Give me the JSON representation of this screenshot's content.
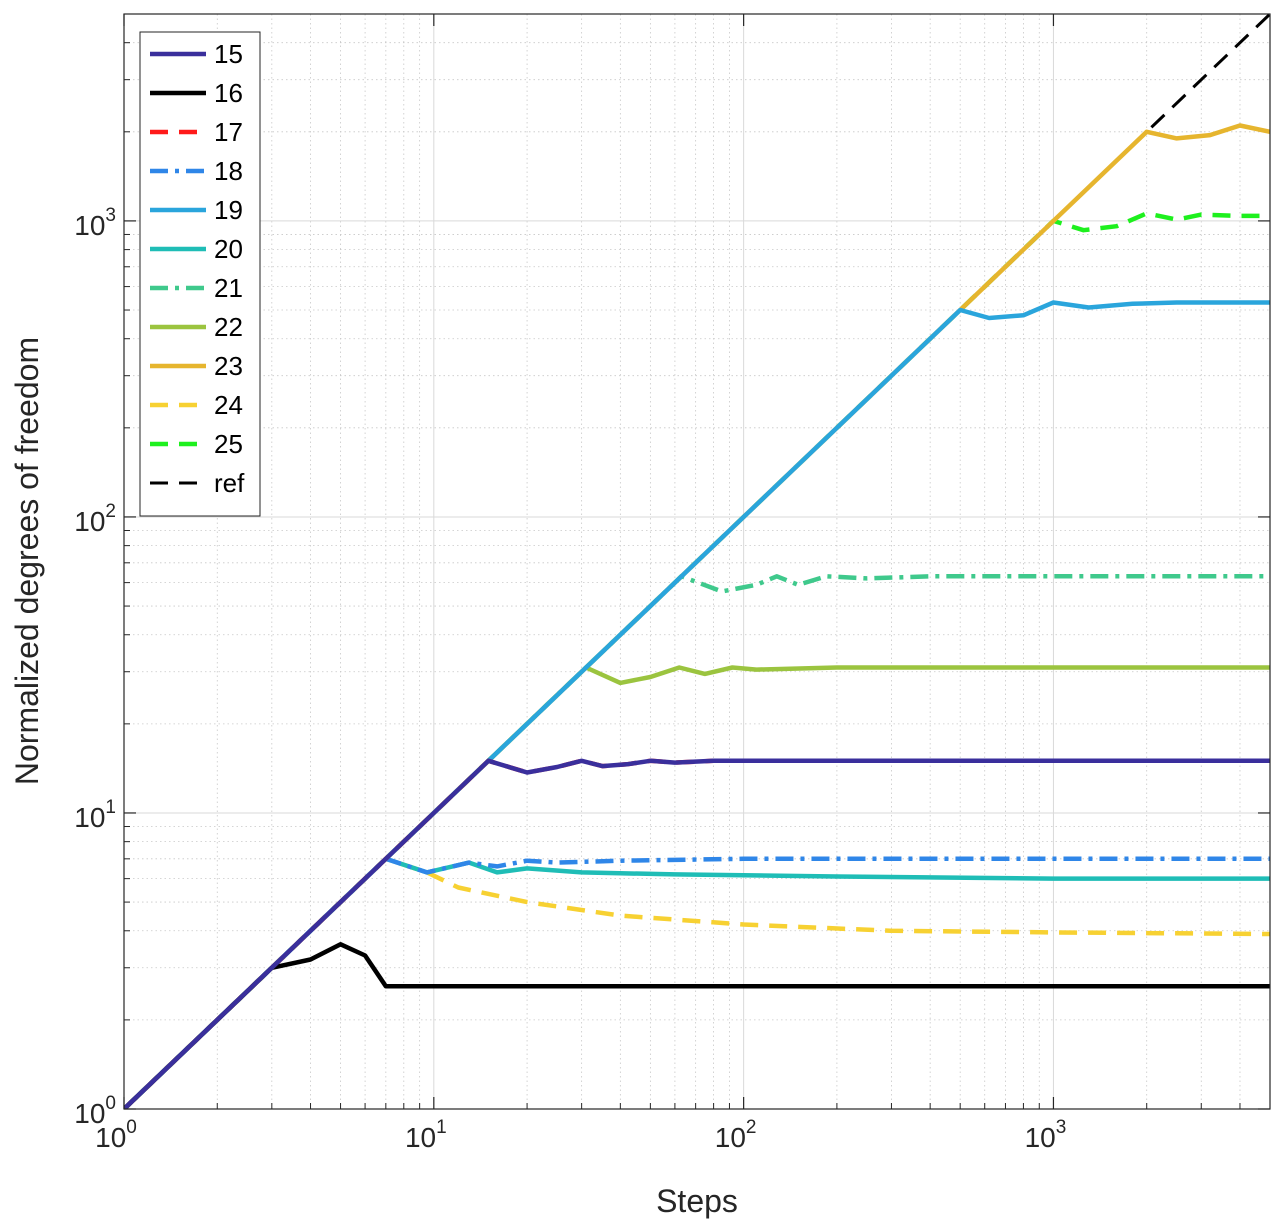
{
  "chart_data": {
    "type": "line",
    "title": "",
    "xlabel": "Steps",
    "ylabel": "Normalized degrees of freedom",
    "xscale": "log",
    "yscale": "log",
    "xlim": [
      1,
      5000
    ],
    "ylim": [
      1,
      5000
    ],
    "grid": "major and minor, dotted",
    "legend_position": "top-left",
    "x_ticks": [
      {
        "base": "10",
        "exp": "0",
        "value": 1
      },
      {
        "base": "10",
        "exp": "1",
        "value": 10
      },
      {
        "base": "10",
        "exp": "2",
        "value": 100
      },
      {
        "base": "10",
        "exp": "3",
        "value": 1000
      }
    ],
    "y_ticks": [
      {
        "base": "10",
        "exp": "0",
        "value": 1
      },
      {
        "base": "10",
        "exp": "1",
        "value": 10
      },
      {
        "base": "10",
        "exp": "2",
        "value": 100
      },
      {
        "base": "10",
        "exp": "3",
        "value": 1000
      }
    ],
    "series": [
      {
        "name": "15",
        "color": "#3a2f9c",
        "dash": "solid",
        "points": [
          [
            1,
            1
          ],
          [
            15,
            15
          ],
          [
            20,
            13.7
          ],
          [
            25,
            14.3
          ],
          [
            30,
            15
          ],
          [
            35,
            14.4
          ],
          [
            42,
            14.6
          ],
          [
            50,
            15
          ],
          [
            60,
            14.8
          ],
          [
            80,
            15
          ],
          [
            150,
            15
          ],
          [
            500,
            15
          ],
          [
            5000,
            15
          ]
        ]
      },
      {
        "name": "16",
        "color": "#000000",
        "dash": "solid",
        "points": [
          [
            1,
            1
          ],
          [
            3,
            3
          ],
          [
            4,
            3.2
          ],
          [
            5,
            3.6
          ],
          [
            6,
            3.3
          ],
          [
            7,
            2.6
          ],
          [
            5000,
            2.6
          ]
        ]
      },
      {
        "name": "17",
        "color": "#ff1a1a",
        "dash": "dash",
        "points": [
          [
            1,
            1
          ],
          [
            15,
            15
          ],
          [
            20,
            13.7
          ],
          [
            25,
            14.3
          ],
          [
            30,
            15
          ],
          [
            35,
            14.4
          ],
          [
            42,
            14.6
          ],
          [
            50,
            15
          ],
          [
            60,
            14.8
          ],
          [
            80,
            15
          ],
          [
            150,
            15
          ],
          [
            500,
            15
          ],
          [
            5000,
            15
          ]
        ]
      },
      {
        "name": "18",
        "color": "#2f86e8",
        "dash": "dashdot",
        "points": [
          [
            1,
            1
          ],
          [
            7,
            7
          ],
          [
            9.5,
            6.3
          ],
          [
            13,
            6.8
          ],
          [
            16,
            6.6
          ],
          [
            20,
            6.9
          ],
          [
            25,
            6.8
          ],
          [
            40,
            6.9
          ],
          [
            100,
            7
          ],
          [
            5000,
            7
          ]
        ]
      },
      {
        "name": "19",
        "color": "#2aa5dc",
        "dash": "solid",
        "points": [
          [
            1,
            1
          ],
          [
            500,
            500
          ],
          [
            620,
            470
          ],
          [
            800,
            480
          ],
          [
            1000,
            530
          ],
          [
            1300,
            510
          ],
          [
            1800,
            525
          ],
          [
            2500,
            530
          ],
          [
            5000,
            530
          ]
        ]
      },
      {
        "name": "20",
        "color": "#1fbdb6",
        "dash": "solid",
        "points": [
          [
            1,
            1
          ],
          [
            7,
            7
          ],
          [
            9.5,
            6.3
          ],
          [
            13,
            6.8
          ],
          [
            16,
            6.3
          ],
          [
            20,
            6.5
          ],
          [
            30,
            6.3
          ],
          [
            60,
            6.2
          ],
          [
            200,
            6.1
          ],
          [
            1000,
            6.0
          ],
          [
            5000,
            6.0
          ]
        ]
      },
      {
        "name": "21",
        "color": "#3fc98c",
        "dash": "dashdot",
        "points": [
          [
            1,
            1
          ],
          [
            63,
            63
          ],
          [
            85,
            56
          ],
          [
            110,
            59
          ],
          [
            128,
            63
          ],
          [
            150,
            59
          ],
          [
            185,
            63
          ],
          [
            250,
            62
          ],
          [
            400,
            63
          ],
          [
            5000,
            63
          ]
        ]
      },
      {
        "name": "22",
        "color": "#9bc43f",
        "dash": "solid",
        "points": [
          [
            1,
            1
          ],
          [
            31,
            31
          ],
          [
            40,
            27.5
          ],
          [
            50,
            28.8
          ],
          [
            62,
            31
          ],
          [
            75,
            29.5
          ],
          [
            92,
            31
          ],
          [
            110,
            30.5
          ],
          [
            200,
            31
          ],
          [
            5000,
            31
          ]
        ]
      },
      {
        "name": "23",
        "color": "#e6b52e",
        "dash": "solid",
        "points": [
          [
            1,
            1
          ],
          [
            2000,
            2000
          ],
          [
            2500,
            1900
          ],
          [
            3200,
            1950
          ],
          [
            4000,
            2100
          ],
          [
            5000,
            2000
          ]
        ]
      },
      {
        "name": "24",
        "color": "#f7d132",
        "dash": "dash",
        "points": [
          [
            1,
            1
          ],
          [
            7,
            7
          ],
          [
            9.5,
            6.3
          ],
          [
            12,
            5.6
          ],
          [
            20,
            5.0
          ],
          [
            40,
            4.5
          ],
          [
            100,
            4.2
          ],
          [
            300,
            4.0
          ],
          [
            1000,
            3.95
          ],
          [
            5000,
            3.9
          ]
        ]
      },
      {
        "name": "25",
        "color": "#1ef01e",
        "dash": "dash",
        "points": [
          [
            1,
            1
          ],
          [
            1000,
            1000
          ],
          [
            1250,
            930
          ],
          [
            1600,
            960
          ],
          [
            2000,
            1060
          ],
          [
            2500,
            1010
          ],
          [
            3000,
            1050
          ],
          [
            4000,
            1040
          ],
          [
            5000,
            1040
          ]
        ]
      },
      {
        "name": "ref",
        "color": "#000000",
        "dash": "dash",
        "points": [
          [
            1,
            1
          ],
          [
            5000,
            5000
          ]
        ]
      }
    ]
  }
}
